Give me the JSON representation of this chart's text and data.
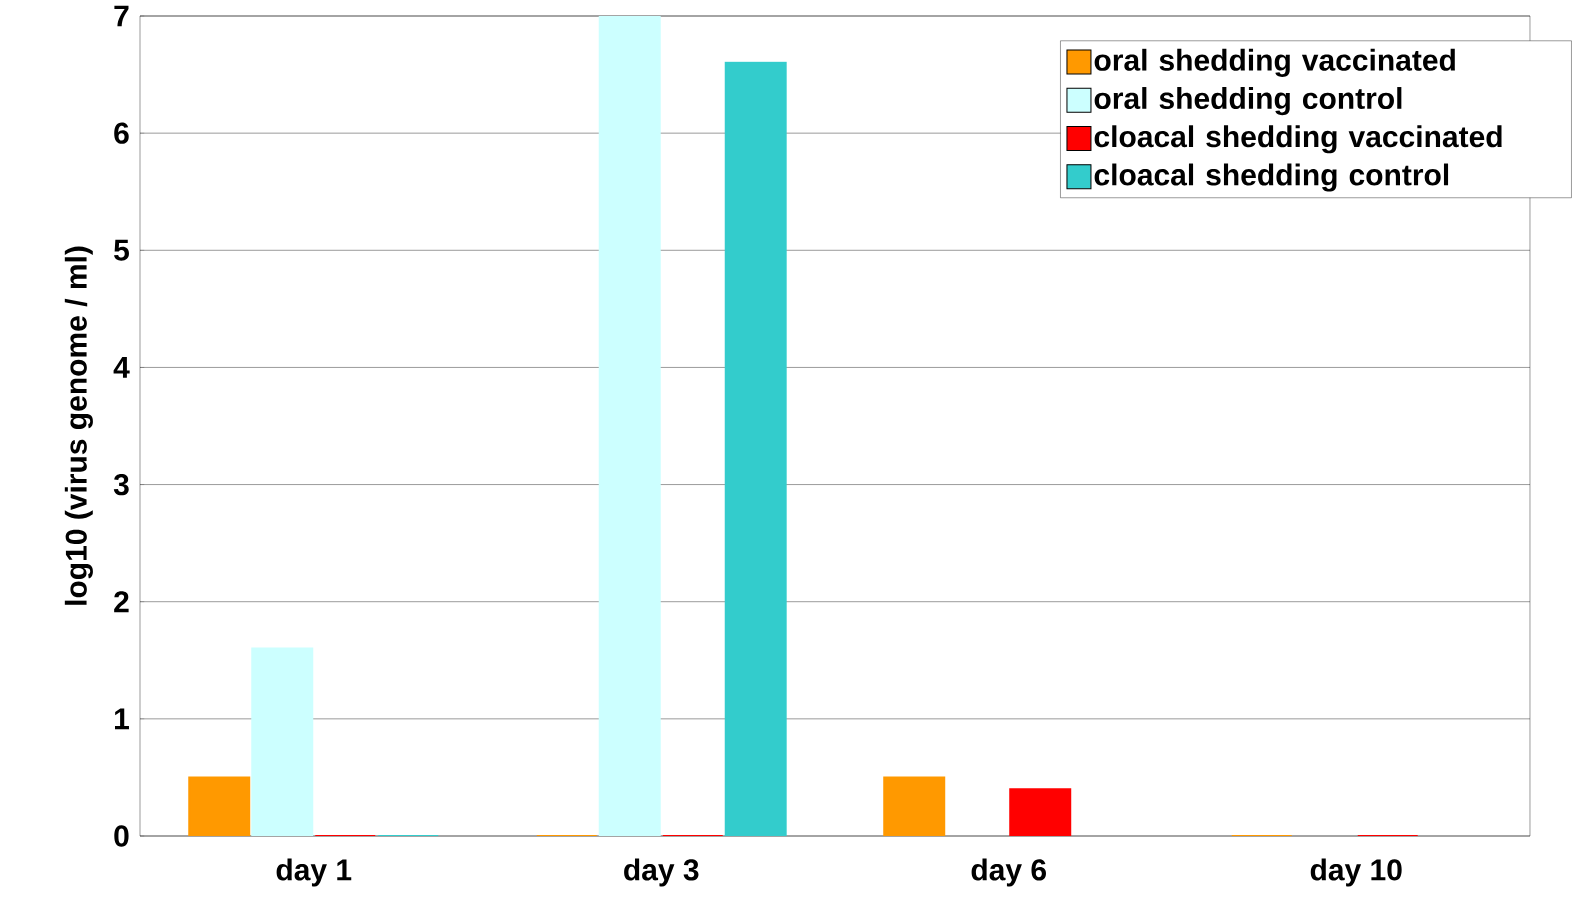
{
  "chart_data": {
    "type": "bar",
    "ylabel": "log10 (virus genome / ml)",
    "categories": [
      "day 1",
      "day 3",
      "day 6",
      "day 10"
    ],
    "series": [
      {
        "name": "oral shedding vaccinated",
        "color": "#ff9900",
        "values": [
          0.5,
          0,
          0.5,
          0
        ]
      },
      {
        "name": "oral shedding control",
        "color": "#ccffff",
        "values": [
          1.6,
          7.0,
          null,
          null
        ]
      },
      {
        "name": "cloacal shedding vaccinated",
        "color": "#ff0000",
        "values": [
          0,
          0,
          0.4,
          0
        ]
      },
      {
        "name": "cloacal shedding control",
        "color": "#33cccc",
        "values": [
          0,
          6.6,
          null,
          null
        ]
      }
    ],
    "ylim": [
      0,
      7
    ],
    "yticks": [
      0,
      1,
      2,
      3,
      4,
      5,
      6,
      7
    ],
    "grid": "y",
    "legend": "top right"
  }
}
